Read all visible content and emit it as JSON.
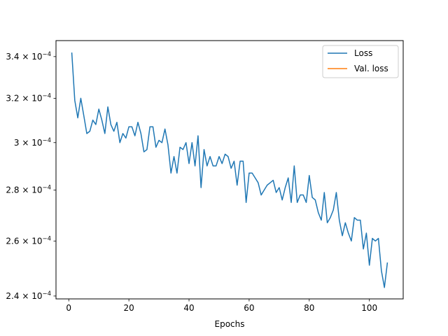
{
  "chart_data": {
    "type": "line",
    "title": "",
    "xlabel": "Epochs",
    "ylabel": "",
    "xlim": [
      -4.25,
      111.25
    ],
    "ylim": [
      0.000239,
      0.000348
    ],
    "y_scale": "log",
    "grid": false,
    "legend_position": "top-right",
    "x_ticks": [
      {
        "value": 0,
        "label": "0"
      },
      {
        "value": 20,
        "label": "20"
      },
      {
        "value": 40,
        "label": "40"
      },
      {
        "value": 60,
        "label": "60"
      },
      {
        "value": 80,
        "label": "80"
      },
      {
        "value": 100,
        "label": "100"
      }
    ],
    "y_ticks": [
      {
        "value": 0.00024,
        "mantissa": "2.4",
        "base": "10",
        "exp": "−4"
      },
      {
        "value": 0.00026,
        "mantissa": "2.6",
        "base": "10",
        "exp": "−4"
      },
      {
        "value": 0.00028,
        "mantissa": "2.8",
        "base": "10",
        "exp": "−4"
      },
      {
        "value": 0.0003,
        "mantissa": "3",
        "base": "10",
        "exp": "−4"
      },
      {
        "value": 0.00032,
        "mantissa": "3.2",
        "base": "10",
        "exp": "−4"
      },
      {
        "value": 0.00034,
        "mantissa": "3.4",
        "base": "10",
        "exp": "−4"
      }
    ],
    "series": [
      {
        "name": "Loss",
        "color": "#1f77b4",
        "x": [
          1,
          2,
          3,
          4,
          5,
          6,
          7,
          8,
          9,
          10,
          11,
          12,
          13,
          14,
          15,
          16,
          17,
          18,
          19,
          20,
          21,
          22,
          23,
          24,
          25,
          26,
          27,
          28,
          29,
          30,
          31,
          32,
          33,
          34,
          35,
          36,
          37,
          38,
          39,
          40,
          41,
          42,
          43,
          44,
          45,
          46,
          47,
          48,
          49,
          50,
          51,
          52,
          53,
          54,
          55,
          56,
          57,
          58,
          59,
          60,
          61,
          62,
          63,
          64,
          65,
          66,
          67,
          68,
          69,
          70,
          71,
          72,
          73,
          74,
          75,
          76,
          77,
          78,
          79,
          80,
          81,
          82,
          83,
          84,
          85,
          86,
          87,
          88,
          89,
          90,
          91,
          92,
          93,
          94,
          95,
          96,
          97,
          98,
          99,
          100,
          101,
          102,
          103,
          104,
          105,
          106
        ],
        "values": [
          0.000342,
          0.000319,
          0.000311,
          0.00032,
          0.000312,
          0.000304,
          0.000305,
          0.00031,
          0.000308,
          0.000315,
          0.00031,
          0.000304,
          0.000316,
          0.000308,
          0.000305,
          0.000309,
          0.0003,
          0.000304,
          0.000302,
          0.000307,
          0.000307,
          0.000303,
          0.000309,
          0.000304,
          0.000296,
          0.000297,
          0.000307,
          0.000307,
          0.000298,
          0.000301,
          0.0003,
          0.000306,
          0.000299,
          0.000287,
          0.000294,
          0.000287,
          0.000298,
          0.000297,
          0.0003,
          0.000291,
          0.0003,
          0.00029,
          0.000303,
          0.000281,
          0.000297,
          0.00029,
          0.000294,
          0.00029,
          0.00029,
          0.000294,
          0.000291,
          0.000295,
          0.000294,
          0.000289,
          0.000292,
          0.000282,
          0.000292,
          0.000292,
          0.000275,
          0.000287,
          0.000287,
          0.000285,
          0.000283,
          0.000278,
          0.00028,
          0.000282,
          0.000283,
          0.000284,
          0.000279,
          0.000281,
          0.000276,
          0.000281,
          0.000285,
          0.000275,
          0.00029,
          0.000275,
          0.000278,
          0.000278,
          0.000275,
          0.000286,
          0.000277,
          0.000276,
          0.000271,
          0.000268,
          0.000279,
          0.000267,
          0.000269,
          0.000272,
          0.000279,
          0.000268,
          0.000262,
          0.000267,
          0.000263,
          0.00026,
          0.000269,
          0.000268,
          0.000268,
          0.000257,
          0.000263,
          0.000251,
          0.000261,
          0.00026,
          0.000261,
          0.000249,
          0.000243,
          0.000252
        ]
      },
      {
        "name": "Val. loss",
        "color": "#ff7f0e",
        "x": [],
        "values": []
      }
    ]
  }
}
